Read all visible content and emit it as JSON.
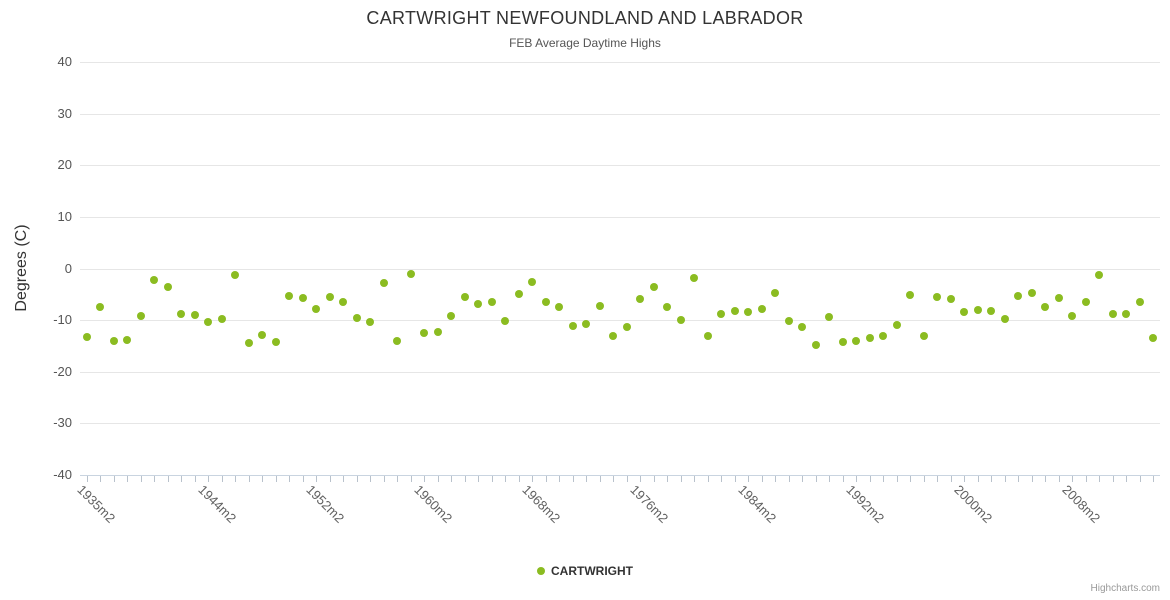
{
  "chart_data": {
    "type": "scatter",
    "title": "CARTWRIGHT NEWFOUNDLAND AND LABRADOR",
    "subtitle": "FEB Average Daytime Highs",
    "ylabel": "Degrees (C)",
    "ylim": [
      -40,
      40
    ],
    "y_ticks": [
      40,
      30,
      20,
      10,
      0,
      -10,
      -20,
      -30,
      -40
    ],
    "grid": true,
    "legend_position": "bottom-center",
    "series_name": "CARTWRIGHT",
    "point_color": "#8bbc21",
    "credit": "Highcharts.com",
    "x_tick_labels": [
      "1935m2",
      "1944m2",
      "1952m2",
      "1960m2",
      "1968m2",
      "1976m2",
      "1984m2",
      "1992m2",
      "2000m2",
      "2008m2"
    ],
    "categories": [
      "1935m2",
      "1936m2",
      "1937m2",
      "1938m2",
      "1939m2",
      "1940m2",
      "1941m2",
      "1942m2",
      "1943m2",
      "1944m2",
      "1945m2",
      "1946m2",
      "1947m2",
      "1948m2",
      "1949m2",
      "1950m2",
      "1951m2",
      "1952m2",
      "1953m2",
      "1954m2",
      "1955m2",
      "1956m2",
      "1957m2",
      "1958m2",
      "1959m2",
      "1960m2",
      "1961m2",
      "1962m2",
      "1963m2",
      "1964m2",
      "1965m2",
      "1966m2",
      "1967m2",
      "1968m2",
      "1969m2",
      "1970m2",
      "1971m2",
      "1972m2",
      "1973m2",
      "1974m2",
      "1975m2",
      "1976m2",
      "1977m2",
      "1978m2",
      "1979m2",
      "1980m2",
      "1981m2",
      "1982m2",
      "1983m2",
      "1984m2",
      "1985m2",
      "1986m2",
      "1987m2",
      "1988m2",
      "1989m2",
      "1990m2",
      "1991m2",
      "1992m2",
      "1993m2",
      "1994m2",
      "1995m2",
      "1996m2",
      "1997m2",
      "1998m2",
      "1999m2",
      "2000m2",
      "2001m2",
      "2002m2",
      "2003m2",
      "2004m2",
      "2005m2",
      "2006m2",
      "2007m2",
      "2008m2",
      "2009m2",
      "2010m2",
      "2011m2",
      "2012m2",
      "2013m2",
      "2014m2"
    ],
    "values": [
      -13.3,
      -7.5,
      -14.0,
      -13.8,
      -9.2,
      -2.3,
      -3.5,
      -8.8,
      -9.0,
      -10.3,
      -9.8,
      -1.3,
      -14.5,
      -12.8,
      -14.2,
      -5.4,
      -5.8,
      -7.8,
      -5.5,
      -6.5,
      -9.5,
      -10.4,
      -2.8,
      -14.0,
      -1.1,
      -12.4,
      -12.3,
      -9.2,
      -5.6,
      -6.8,
      -6.5,
      -10.1,
      -4.9,
      -2.6,
      -6.4,
      -7.4,
      -11.1,
      -10.7,
      -7.2,
      -13.0,
      -11.3,
      -6.0,
      -3.6,
      -7.5,
      -10.0,
      -1.9,
      -13.1,
      -8.9,
      -8.2,
      -8.4,
      -7.8,
      -4.8,
      -10.2,
      -11.3,
      -14.8,
      -9.4,
      -14.2,
      -14.0,
      -13.5,
      -13.0,
      -11.0,
      -5.2,
      -13.0,
      -5.6,
      -5.9,
      -8.4,
      -8.1,
      -8.3,
      -9.7,
      -5.4,
      -4.7,
      -7.5,
      -5.8,
      -9.2,
      -6.5,
      -1.2,
      -8.8,
      -8.9,
      -6.4,
      -13.5
    ]
  }
}
